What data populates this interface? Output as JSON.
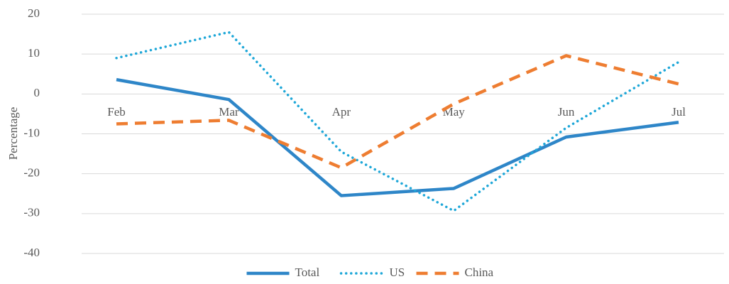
{
  "chart_data": {
    "type": "line",
    "y_label": "Percentage",
    "categories": [
      "Feb",
      "Mar",
      "Apr",
      "May",
      "Jun",
      "Jul"
    ],
    "series": [
      {
        "name": "Total",
        "color": "#2e86c8",
        "style": "solid",
        "values": [
          3.6,
          -1.4,
          -25.5,
          -23.7,
          -10.8,
          -7.1
        ]
      },
      {
        "name": "US",
        "color": "#1ea7d8",
        "style": "dotted",
        "values": [
          9,
          15.5,
          -14.5,
          -29.3,
          -8.5,
          8
        ]
      },
      {
        "name": "China",
        "color": "#ee7d31",
        "style": "dashed",
        "values": [
          -7.5,
          -6.6,
          -18.5,
          -2.5,
          9.6,
          2.5
        ]
      }
    ],
    "ylim": [
      -40,
      20
    ],
    "yticks": [
      -40,
      -30,
      -20,
      -10,
      0,
      10,
      20
    ],
    "grid": true,
    "legend": "bottom"
  }
}
